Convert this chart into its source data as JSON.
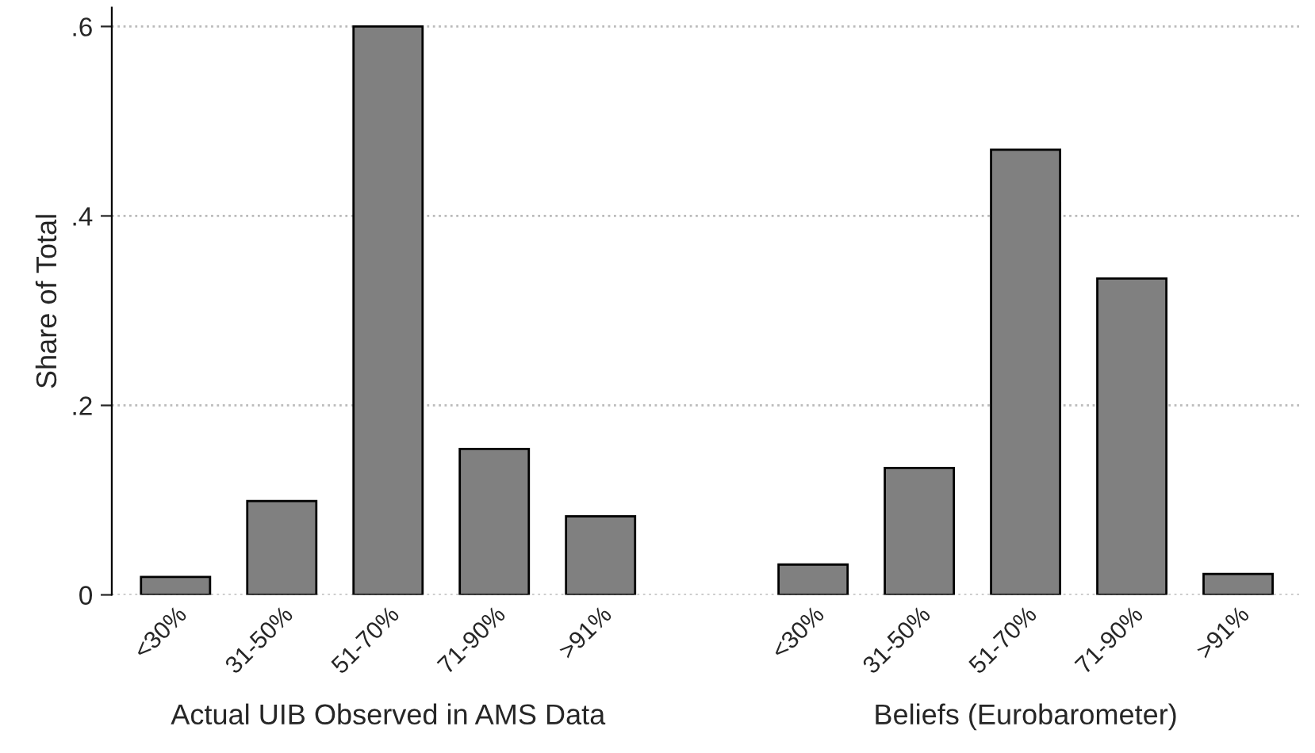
{
  "chart_data": {
    "type": "bar",
    "ylabel": "Share of Total",
    "categories": [
      "<30%",
      "31-50%",
      "51-70%",
      "71-90%",
      ">91%",
      null,
      "<30%",
      "31-50%",
      "51-70%",
      "71-90%",
      ">91%"
    ],
    "values": [
      0.019,
      0.099,
      0.6,
      0.154,
      0.083,
      null,
      0.032,
      0.134,
      0.47,
      0.334,
      0.022
    ],
    "color": "#808080",
    "ylim": [
      0,
      0.62
    ],
    "yticks": [
      0,
      {
        "value": 0.2,
        "label": ".2"
      },
      {
        "value": 0.4,
        "label": ".4"
      },
      {
        "value": 0.6,
        "label": ".6"
      }
    ],
    "grid": "y",
    "legend": false,
    "annotations": [
      "Actual UIB Observed in AMS Data",
      "Beliefs (Eurobarometer)"
    ]
  }
}
